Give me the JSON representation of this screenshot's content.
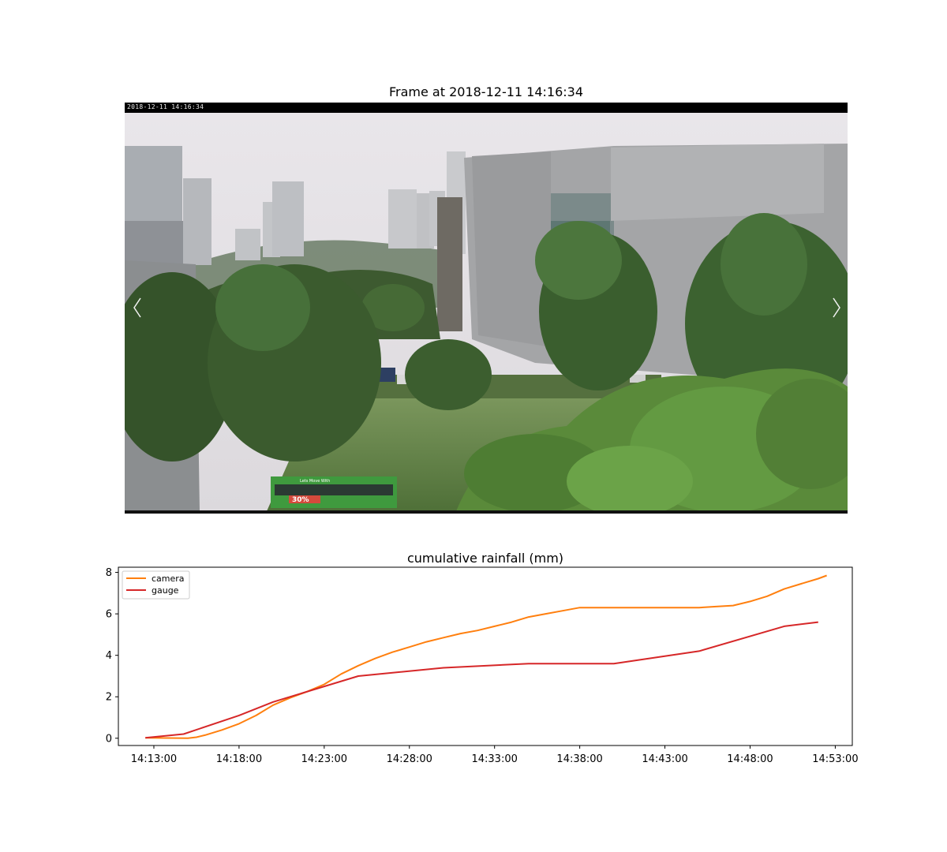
{
  "frame": {
    "title": "Frame at 2018-12-11 14:16:34",
    "overlay_timestamp": "2018-12-11 14:16:34",
    "sign_text": "30%",
    "bus_text": "Lets Move With"
  },
  "chart_data": {
    "type": "line",
    "title": "cumulative rainfall (mm)",
    "xlabel": "",
    "ylabel": "",
    "x_ticks": [
      "14:13:00",
      "14:18:00",
      "14:23:00",
      "14:28:00",
      "14:33:00",
      "14:38:00",
      "14:43:00",
      "14:48:00",
      "14:53:00"
    ],
    "y_ticks": [
      "0",
      "2",
      "4",
      "6",
      "8"
    ],
    "xlim": [
      "14:10:55",
      "14:54:00"
    ],
    "ylim": [
      -0.35,
      8.25
    ],
    "grid": false,
    "legend_position": "top-left",
    "series": [
      {
        "name": "camera",
        "color": "#ff7f0e",
        "points": [
          [
            "14:12:30",
            0.02
          ],
          [
            "14:15:00",
            0.0
          ],
          [
            "14:15:30",
            0.05
          ],
          [
            "14:16:00",
            0.15
          ],
          [
            "14:17:00",
            0.4
          ],
          [
            "14:18:00",
            0.7
          ],
          [
            "14:19:00",
            1.1
          ],
          [
            "14:20:00",
            1.6
          ],
          [
            "14:21:00",
            1.95
          ],
          [
            "14:22:00",
            2.25
          ],
          [
            "14:23:00",
            2.6
          ],
          [
            "14:24:00",
            3.1
          ],
          [
            "14:25:00",
            3.5
          ],
          [
            "14:26:00",
            3.85
          ],
          [
            "14:27:00",
            4.15
          ],
          [
            "14:28:00",
            4.4
          ],
          [
            "14:29:00",
            4.65
          ],
          [
            "14:30:00",
            4.85
          ],
          [
            "14:31:00",
            5.05
          ],
          [
            "14:32:00",
            5.2
          ],
          [
            "14:33:00",
            5.4
          ],
          [
            "14:34:00",
            5.6
          ],
          [
            "14:35:00",
            5.85
          ],
          [
            "14:36:00",
            6.0
          ],
          [
            "14:37:00",
            6.15
          ],
          [
            "14:38:00",
            6.3
          ],
          [
            "14:40:00",
            6.3
          ],
          [
            "14:45:00",
            6.3
          ],
          [
            "14:46:00",
            6.35
          ],
          [
            "14:47:00",
            6.4
          ],
          [
            "14:48:00",
            6.6
          ],
          [
            "14:49:00",
            6.85
          ],
          [
            "14:50:00",
            7.2
          ],
          [
            "14:51:00",
            7.45
          ],
          [
            "14:52:00",
            7.7
          ],
          [
            "14:52:30",
            7.85
          ]
        ]
      },
      {
        "name": "gauge",
        "color": "#d62728",
        "points": [
          [
            "14:12:30",
            0.02
          ],
          [
            "14:14:45",
            0.2
          ],
          [
            "14:18:00",
            1.1
          ],
          [
            "14:20:00",
            1.75
          ],
          [
            "14:25:00",
            3.0
          ],
          [
            "14:30:00",
            3.4
          ],
          [
            "14:35:00",
            3.6
          ],
          [
            "14:40:00",
            3.6
          ],
          [
            "14:45:00",
            4.2
          ],
          [
            "14:50:00",
            5.4
          ],
          [
            "14:52:00",
            5.6
          ]
        ]
      }
    ]
  }
}
